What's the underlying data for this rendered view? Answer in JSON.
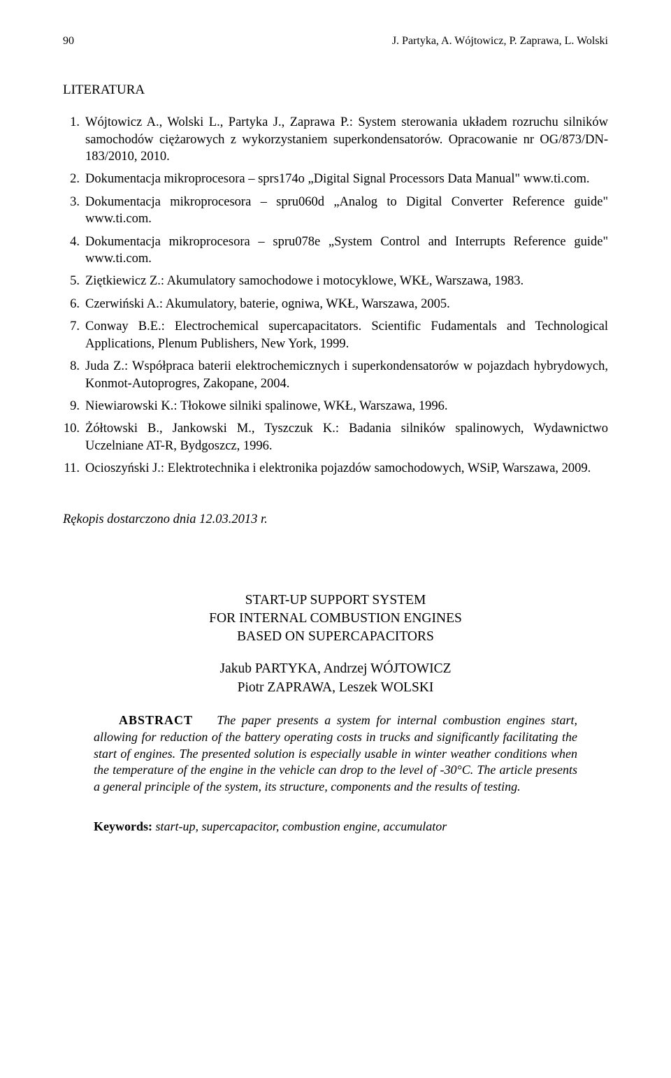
{
  "header": {
    "page_number": "90",
    "running_head": "J. Partyka, A. Wójtowicz, P. Zaprawa, L. Wolski"
  },
  "literature": {
    "heading": "LITERATURA",
    "items": [
      {
        "n": "1.",
        "text": "Wójtowicz A., Wolski L., Partyka J., Zaprawa P.: System sterowania układem rozruchu silników samochodów ciężarowych z wykorzystaniem superkondensatorów. Opracowanie nr OG/873/DN-183/2010, 2010."
      },
      {
        "n": "2.",
        "text": "Dokumentacja mikroprocesora – sprs174o „Digital Signal Processors Data Manual\" www.ti.com."
      },
      {
        "n": "3.",
        "text": "Dokumentacja mikroprocesora – spru060d „Analog to Digital Converter Reference guide\" www.ti.com."
      },
      {
        "n": "4.",
        "text": "Dokumentacja mikroprocesora – spru078e „System Control and Interrupts Reference guide\" www.ti.com."
      },
      {
        "n": "5.",
        "text": "Ziętkiewicz Z.: Akumulatory samochodowe i motocyklowe, WKŁ, Warszawa, 1983."
      },
      {
        "n": "6.",
        "text": "Czerwiński A.: Akumulatory, baterie, ogniwa, WKŁ, Warszawa, 2005."
      },
      {
        "n": "7.",
        "text": "Conway B.E.: Electrochemical supercapacitators. Scientific Fudamentals and Technological Applications, Plenum Publishers, New York, 1999."
      },
      {
        "n": "8.",
        "text": "Juda Z.: Współpraca baterii elektrochemicznych i superkondensatorów w pojazdach hybrydowych, Konmot-Autoprogres, Zakopane, 2004."
      },
      {
        "n": "9.",
        "text": "Niewiarowski K.: Tłokowe silniki spalinowe, WKŁ, Warszawa, 1996."
      },
      {
        "n": "10.",
        "text": "Żółtowski B., Jankowski M., Tyszczuk K.: Badania silników spalinowych, Wydawnictwo Uczelniane AT-R, Bydgoszcz, 1996."
      },
      {
        "n": "11.",
        "text": "Ocioszyński J.: Elektrotechnika i elektronika pojazdów samochodowych, WSiP, Warszawa, 2009."
      }
    ]
  },
  "manuscript_note": "Rękopis dostarczono dnia 12.03.2013 r.",
  "abstract": {
    "title_lines": [
      "START-UP SUPPORT SYSTEM",
      "FOR INTERNAL COMBUSTION ENGINES",
      "BASED ON SUPERCAPACITORS"
    ],
    "author_lines": [
      "Jakub PARTYKA, Andrzej WÓJTOWICZ",
      "Piotr ZAPRAWA, Leszek WOLSKI"
    ],
    "label": "ABSTRACT",
    "body": "The paper presents a system for internal combustion engines start, allowing for reduction of the battery operating costs in trucks and significantly facilitating the start of engines. The presented solution is especially usable in winter weather conditions when the temperature of the engine in the vehicle can drop to the level of -30°C. The article presents a general principle of the system, its structure, components and the results of testing."
  },
  "keywords": {
    "label": "Keywords:",
    "text": "start-up, supercapacitor, combustion engine, accumulator"
  }
}
